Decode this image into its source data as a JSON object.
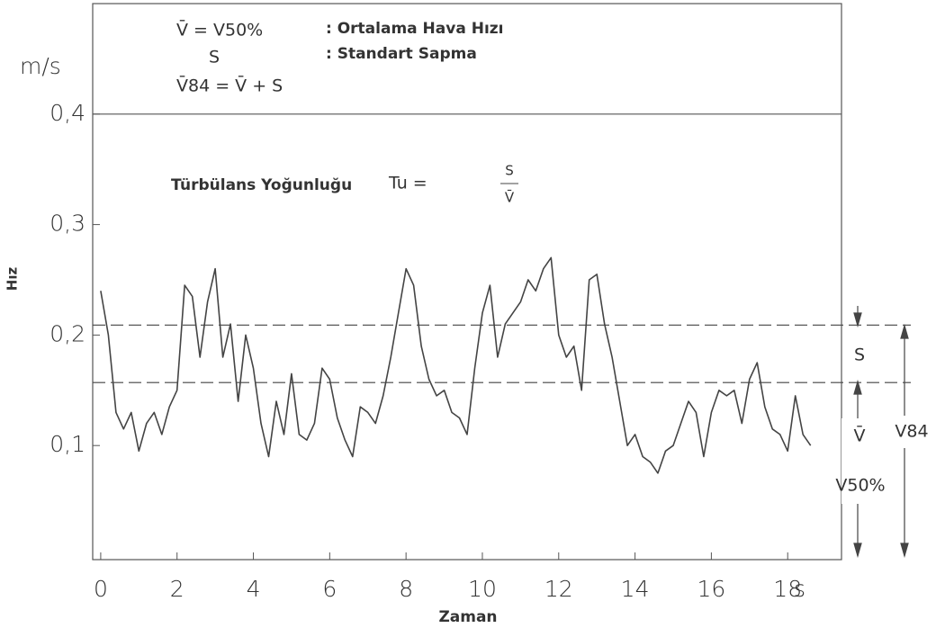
{
  "chart_data": {
    "type": "line",
    "y_unit": "m/s",
    "x_unit": "s",
    "y_label": "Hız",
    "x_label": "Zaman",
    "legend_lines": [
      {
        "symbol": "V̄ = V50%",
        "text": ": Ortalama Hava Hızı"
      },
      {
        "symbol": "S",
        "text": ": Standart Sapma"
      },
      {
        "symbol": "V̄84 = V̄ + S"
      }
    ],
    "formula_label": "Türbülans Yoğunluğu",
    "formula_lhs": "Tu =",
    "formula_num": "S",
    "formula_den": "V̄",
    "annotations": [
      "S",
      "V̄",
      "V50%",
      "V84"
    ],
    "reference_lines": [
      {
        "name": "V84",
        "value": 0.209
      },
      {
        "name": "V50%",
        "value": 0.157
      }
    ],
    "x": [
      0,
      0.2,
      0.4,
      0.6,
      0.8,
      1,
      1.2,
      1.4,
      1.6,
      1.8,
      2,
      2.2,
      2.4,
      2.6,
      2.8,
      3,
      3.2,
      3.4,
      3.6,
      3.8,
      4,
      4.2,
      4.4,
      4.6,
      4.8,
      5,
      5.2,
      5.4,
      5.6,
      5.8,
      6,
      6.2,
      6.4,
      6.6,
      6.8,
      7,
      7.2,
      7.4,
      7.6,
      7.8,
      8,
      8.2,
      8.4,
      8.6,
      8.8,
      9,
      9.2,
      9.4,
      9.6,
      9.8,
      10,
      10.2,
      10.4,
      10.6,
      10.8,
      11,
      11.2,
      11.4,
      11.6,
      11.8,
      12,
      12.2,
      12.4,
      12.6,
      12.8,
      13,
      13.2,
      13.4,
      13.6,
      13.8,
      14,
      14.2,
      14.4,
      14.6,
      14.8,
      15,
      15.2,
      15.4,
      15.6,
      15.8,
      16,
      16.2,
      16.4,
      16.6,
      16.8,
      17,
      17.2,
      17.4,
      17.6,
      17.8,
      18,
      18.2,
      18.4,
      18.6
    ],
    "series": [
      {
        "color": "#444444",
        "values": [
          0.24,
          0.2,
          0.13,
          0.115,
          0.13,
          0.095,
          0.12,
          0.13,
          0.11,
          0.135,
          0.15,
          0.245,
          0.235,
          0.18,
          0.23,
          0.26,
          0.18,
          0.21,
          0.14,
          0.2,
          0.17,
          0.12,
          0.09,
          0.14,
          0.11,
          0.165,
          0.11,
          0.105,
          0.12,
          0.17,
          0.16,
          0.125,
          0.105,
          0.09,
          0.135,
          0.13,
          0.12,
          0.145,
          0.18,
          0.22,
          0.26,
          0.245,
          0.19,
          0.16,
          0.145,
          0.15,
          0.13,
          0.125,
          0.11,
          0.17,
          0.22,
          0.245,
          0.18,
          0.21,
          0.22,
          0.23,
          0.25,
          0.24,
          0.26,
          0.27,
          0.2,
          0.18,
          0.19,
          0.15,
          0.25,
          0.255,
          0.21,
          0.18,
          0.14,
          0.1,
          0.11,
          0.09,
          0.085,
          0.075,
          0.095,
          0.1,
          0.12,
          0.14,
          0.13,
          0.09,
          0.13,
          0.15,
          0.145,
          0.15,
          0.12,
          0.16,
          0.175,
          0.135,
          0.115,
          0.11,
          0.095,
          0.145,
          0.11,
          0.1
        ]
      }
    ],
    "xlim": [
      -0.21,
      19.41
    ],
    "ylim": [
      0,
      0.5
    ],
    "xticks": [
      0,
      2,
      4,
      6,
      8,
      10,
      12,
      14,
      16,
      18
    ],
    "yticks": [
      {
        "value": 0.1,
        "label": "0,1"
      },
      {
        "value": 0.2,
        "label": "0,2"
      },
      {
        "value": 0.3,
        "label": "0,3"
      },
      {
        "value": 0.4,
        "label": "0,4"
      }
    ]
  }
}
